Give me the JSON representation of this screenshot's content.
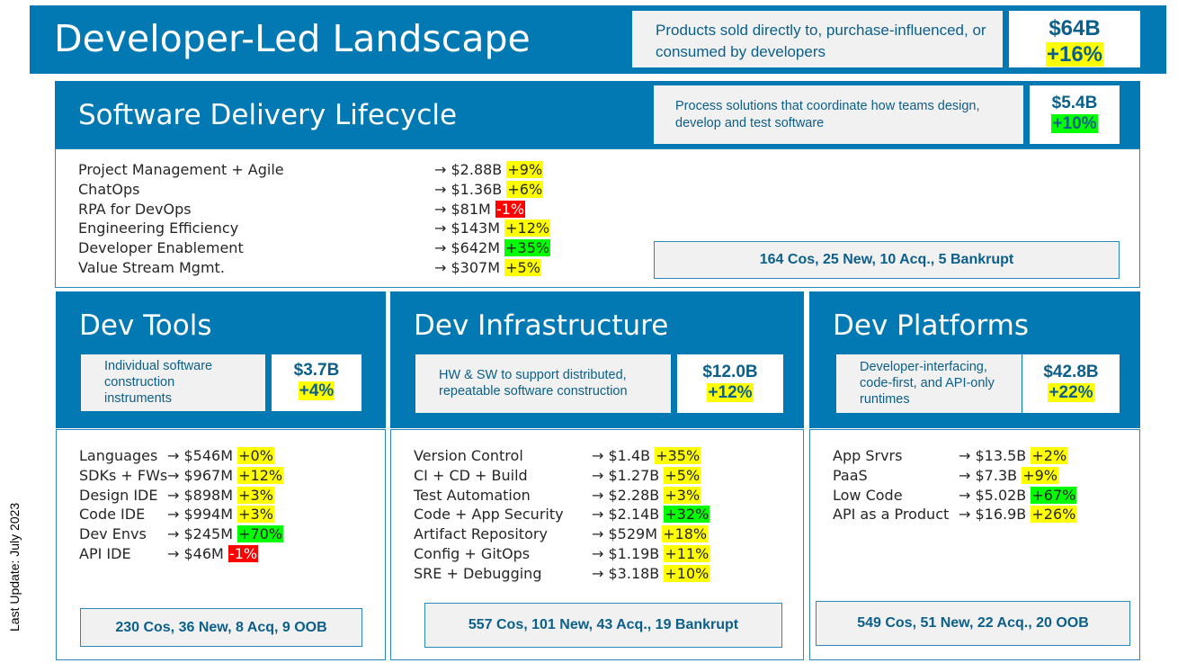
{
  "title": "Developer-Led Landscape",
  "description": "Products sold directly to, purchase-influenced, or consumed by developers",
  "market_size": "$64B",
  "growth": "+16%",
  "side_label": "Last Update: July 2023",
  "colors": {
    "brand_blue": "#0279b3",
    "highlight_yellow": "#ffff00",
    "highlight_green": "#00ff00",
    "highlight_red": "#ff0000"
  },
  "sdl": {
    "title": "Software Delivery Lifecycle",
    "description": "Process solutions that coordinate how teams design, develop and test software",
    "size": "$5.4B",
    "growth": "+10%",
    "stats": "164 Cos, 25 New, 10 Acq., 5 Bankrupt",
    "items": [
      {
        "label": "Project Management + Agile",
        "value": "→ $2.88B",
        "growth": "+9%",
        "hl": "y"
      },
      {
        "label": "ChatOps",
        "value": "→ $1.36B",
        "growth": "+6%",
        "hl": "y"
      },
      {
        "label": "RPA for DevOps",
        "value": "→ $81M",
        "growth": "-1%",
        "hl": "r"
      },
      {
        "label": "Engineering Efficiency",
        "value": "→ $143M",
        "growth": "+12%",
        "hl": "y"
      },
      {
        "label": "Developer Enablement",
        "value": "→ $642M",
        "growth": "+35%",
        "hl": "g"
      },
      {
        "label": "Value Stream Mgmt.",
        "value": "→ $307M",
        "growth": "+5%",
        "hl": "y"
      }
    ]
  },
  "dev_tools": {
    "title": "Dev Tools",
    "description": "Individual software construction instruments",
    "size": "$3.7B",
    "growth": "+4%",
    "stats": "230 Cos, 36 New, 8 Acq, 9 OOB",
    "items": [
      {
        "label": "Languages",
        "value": "→ $546M",
        "growth": "+0%",
        "hl": "y"
      },
      {
        "label": "SDKs + FWs",
        "value": "→ $967M",
        "growth": "+12%",
        "hl": "y"
      },
      {
        "label": "Design IDE",
        "value": "→ $898M",
        "growth": "+3%",
        "hl": "y"
      },
      {
        "label": "Code IDE",
        "value": "→ $994M",
        "growth": "+3%",
        "hl": "y"
      },
      {
        "label": "Dev Envs",
        "value": "→ $245M",
        "growth": "+70%",
        "hl": "g"
      },
      {
        "label": "API IDE",
        "value": "→ $46M",
        "growth": "-1%",
        "hl": "r"
      }
    ]
  },
  "dev_infra": {
    "title": "Dev Infrastructure",
    "description": "HW & SW to support distributed, repeatable software construction",
    "size": "$12.0B",
    "growth": "+12%",
    "stats": "557 Cos, 101 New, 43 Acq., 19 Bankrupt",
    "items": [
      {
        "label": "Version Control",
        "value": "→ $1.4B",
        "growth": "+35%",
        "hl": "y"
      },
      {
        "label": "CI + CD + Build",
        "value": "→ $1.27B",
        "growth": "+5%",
        "hl": "y"
      },
      {
        "label": "Test Automation",
        "value": "→ $2.28B",
        "growth": "+3%",
        "hl": "y"
      },
      {
        "label": "Code + App Security",
        "value": "→ $2.14B",
        "growth": "+32%",
        "hl": "g"
      },
      {
        "label": "Artifact Repository",
        "value": "→ $529M",
        "growth": "+18%",
        "hl": "y"
      },
      {
        "label": "Config + GitOps",
        "value": "→ $1.19B",
        "growth": "+11%",
        "hl": "y"
      },
      {
        "label": "SRE + Debugging",
        "value": "→ $3.18B",
        "growth": "+10%",
        "hl": "y"
      }
    ]
  },
  "dev_platforms": {
    "title": "Dev Platforms",
    "description": "Developer-interfacing, code-first, and API-only runtimes",
    "size": "$42.8B",
    "growth": "+22%",
    "stats": "549 Cos, 51 New, 22 Acq., 20 OOB",
    "items": [
      {
        "label": "App Srvrs",
        "value": "→ $13.5B",
        "growth": "+2%",
        "hl": "y"
      },
      {
        "label": "PaaS",
        "value": "→ $7.3B",
        "growth": "+9%",
        "hl": "y"
      },
      {
        "label": "Low Code",
        "value": "→ $5.02B",
        "growth": "+67%",
        "hl": "g"
      },
      {
        "label": "API as a Product",
        "value": "→ $16.9B",
        "growth": "+26%",
        "hl": "y"
      }
    ]
  }
}
